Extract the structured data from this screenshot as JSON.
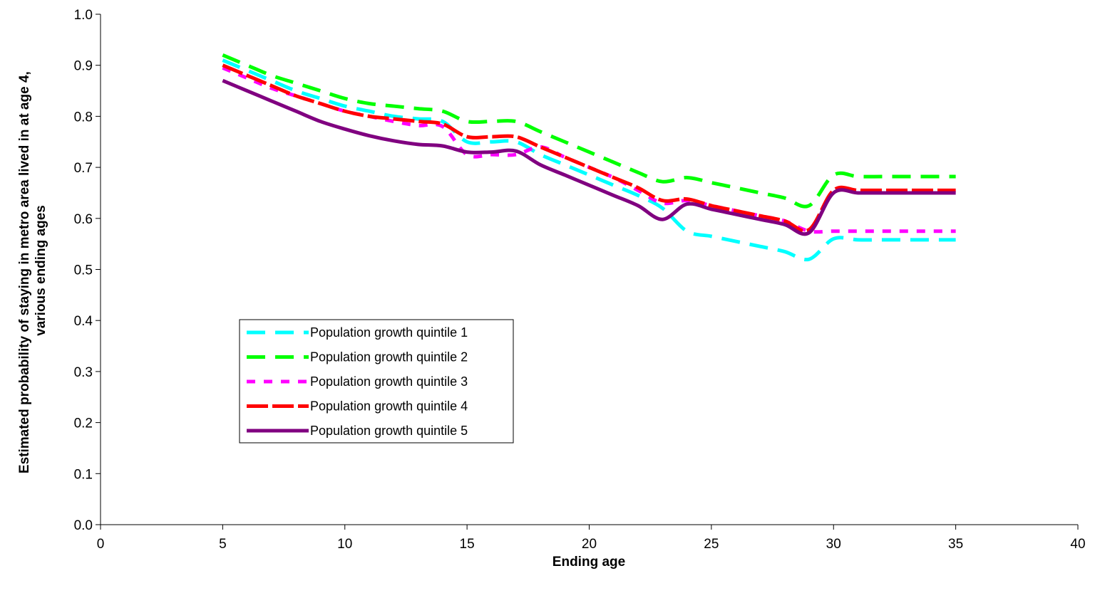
{
  "chart_data": {
    "type": "line",
    "title": "",
    "xlabel": "Ending age",
    "ylabel_lines": [
      "Estimated probability of staying in metro area lived in at age 4,",
      "various ending ages"
    ],
    "xlim": [
      0,
      40
    ],
    "ylim": [
      0,
      1.0
    ],
    "xticks": [
      "0",
      "5",
      "10",
      "15",
      "20",
      "25",
      "30",
      "35",
      "40"
    ],
    "yticks": [
      "0.0",
      "0.1",
      "0.2",
      "0.3",
      "0.4",
      "0.5",
      "0.6",
      "0.7",
      "0.8",
      "0.9",
      "1.0"
    ],
    "grid": false,
    "legend_position": "center-left",
    "x": [
      5,
      6,
      7,
      8,
      9,
      10,
      11,
      12,
      13,
      14,
      15,
      16,
      17,
      18,
      19,
      20,
      21,
      22,
      23,
      24,
      25,
      26,
      27,
      28,
      29,
      30,
      31,
      32,
      33,
      34,
      35
    ],
    "series": [
      {
        "name": "Population growth quintile 1",
        "color": "#00ffff",
        "dash": "26,14",
        "values": [
          0.91,
          0.89,
          0.87,
          0.85,
          0.835,
          0.82,
          0.81,
          0.8,
          0.795,
          0.79,
          0.75,
          0.75,
          0.75,
          0.725,
          0.705,
          0.685,
          0.665,
          0.645,
          0.62,
          0.575,
          0.565,
          0.555,
          0.545,
          0.535,
          0.52,
          0.56,
          0.558,
          0.558,
          0.558,
          0.558,
          0.558
        ]
      },
      {
        "name": "Population growth quintile 2",
        "color": "#00ff00",
        "dash": "26,14",
        "values": [
          0.92,
          0.9,
          0.88,
          0.865,
          0.85,
          0.835,
          0.825,
          0.82,
          0.815,
          0.81,
          0.79,
          0.79,
          0.79,
          0.77,
          0.75,
          0.73,
          0.71,
          0.69,
          0.672,
          0.68,
          0.67,
          0.66,
          0.65,
          0.64,
          0.625,
          0.685,
          0.682,
          0.682,
          0.682,
          0.682,
          0.682
        ]
      },
      {
        "name": "Population growth quintile 3",
        "color": "#ff00ff",
        "dash": "12,12",
        "values": [
          0.895,
          0.875,
          0.855,
          0.84,
          0.825,
          0.81,
          0.8,
          0.79,
          0.782,
          0.78,
          0.725,
          0.725,
          0.725,
          0.74,
          0.72,
          0.7,
          0.68,
          0.655,
          0.63,
          0.635,
          0.625,
          0.615,
          0.605,
          0.595,
          0.575,
          0.575,
          0.575,
          0.575,
          0.575,
          0.575,
          0.575
        ]
      },
      {
        "name": "Population growth quintile 4",
        "color": "#ff0000",
        "dash": "30,6",
        "values": [
          0.9,
          0.88,
          0.86,
          0.84,
          0.825,
          0.81,
          0.8,
          0.795,
          0.79,
          0.785,
          0.76,
          0.76,
          0.76,
          0.74,
          0.72,
          0.7,
          0.68,
          0.66,
          0.635,
          0.638,
          0.625,
          0.615,
          0.605,
          0.595,
          0.578,
          0.655,
          0.655,
          0.655,
          0.655,
          0.655,
          0.655
        ]
      },
      {
        "name": "Population growth quintile 5",
        "color": "#800080",
        "dash": "",
        "values": [
          0.87,
          0.85,
          0.83,
          0.81,
          0.79,
          0.775,
          0.762,
          0.752,
          0.745,
          0.742,
          0.73,
          0.73,
          0.732,
          0.705,
          0.685,
          0.665,
          0.645,
          0.625,
          0.598,
          0.628,
          0.618,
          0.608,
          0.598,
          0.588,
          0.572,
          0.65,
          0.65,
          0.65,
          0.65,
          0.65,
          0.65
        ]
      }
    ]
  }
}
